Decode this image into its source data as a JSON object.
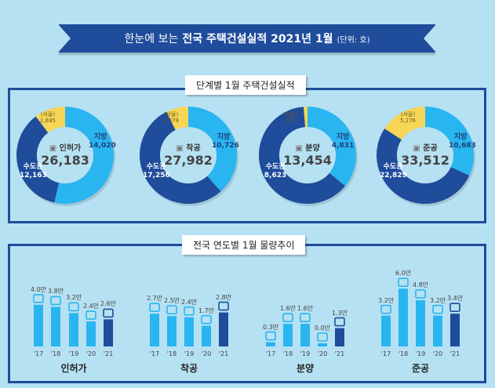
{
  "header": {
    "title_light": "한눈에 보는",
    "title_bold": "전국 주택건설실적 2021년 1월",
    "unit": "(단위: 호)"
  },
  "section1": {
    "title": "단계별  1월 주택건설실적"
  },
  "section2": {
    "title": "전국 연도별 1월 물량추이"
  },
  "colors": {
    "local": "#29b5f0",
    "capital": "#1f4c9b",
    "seoul": "#f7d555",
    "bar": "#29b5f0",
    "bar_current": "#1f4c9b"
  },
  "chart_data": [
    {
      "type": "pie",
      "name": "인허가",
      "icon": "document-pen-icon",
      "total": "26,183",
      "segments": [
        {
          "label": "지방",
          "value": 14020,
          "display": "14,020"
        },
        {
          "label": "수도권",
          "value": 12163,
          "display": "12,163"
        },
        {
          "label": "(서울)",
          "value": 2695,
          "display": "2,695"
        }
      ]
    },
    {
      "type": "pie",
      "name": "착공",
      "icon": "crane-icon",
      "total": "27,982",
      "segments": [
        {
          "label": "지방",
          "value": 10726,
          "display": "10,726"
        },
        {
          "label": "수도권",
          "value": 17256,
          "display": "17,256"
        },
        {
          "label": "(서울)",
          "value": 2079,
          "display": "2,079"
        }
      ]
    },
    {
      "type": "pie",
      "name": "분양",
      "icon": "presentation-board-icon",
      "total": "13,454",
      "segments": [
        {
          "label": "지방",
          "value": 4831,
          "display": "4,831"
        },
        {
          "label": "수도권",
          "value": 8623,
          "display": "8,623"
        },
        {
          "label": "(서울)",
          "value": 173,
          "display": "173"
        }
      ]
    },
    {
      "type": "pie",
      "name": "준공",
      "icon": "buildings-icon",
      "total": "33,512",
      "segments": [
        {
          "label": "지방",
          "value": 10683,
          "display": "10,683"
        },
        {
          "label": "수도권",
          "value": 22829,
          "display": "22,829"
        },
        {
          "label": "(서울)",
          "value": 5276,
          "display": "5,276"
        }
      ]
    },
    {
      "type": "bar",
      "title": "인허가",
      "categories": [
        "'17",
        "'18",
        "'19",
        "'20",
        "'21"
      ],
      "values": [
        4.0,
        3.8,
        3.2,
        2.4,
        2.6
      ],
      "labels": [
        "4.0만",
        "3.8만",
        "3.2만",
        "2.4만",
        "2.6만"
      ]
    },
    {
      "type": "bar",
      "title": "착공",
      "categories": [
        "'17",
        "'18",
        "'19",
        "'20",
        "'21"
      ],
      "values": [
        2.7,
        2.5,
        2.4,
        1.7,
        2.8
      ],
      "labels": [
        "2.7만",
        "2.5만",
        "2.4만",
        "1.7만",
        "2.8만"
      ]
    },
    {
      "type": "bar",
      "title": "분양",
      "categories": [
        "'17",
        "'18",
        "'19",
        "'20",
        "'21"
      ],
      "values": [
        0.3,
        1.6,
        1.6,
        0.0,
        1.3
      ],
      "labels": [
        "0.3만",
        "1.6만",
        "1.6만",
        "0.0만",
        "1.3만"
      ]
    },
    {
      "type": "bar",
      "title": "준공",
      "categories": [
        "'17",
        "'18",
        "'19",
        "'20",
        "'21"
      ],
      "values": [
        3.2,
        6.0,
        4.8,
        3.2,
        3.4
      ],
      "labels": [
        "3.2만",
        "6.0만",
        "4.8만",
        "3.2만",
        "3.4만"
      ]
    }
  ]
}
